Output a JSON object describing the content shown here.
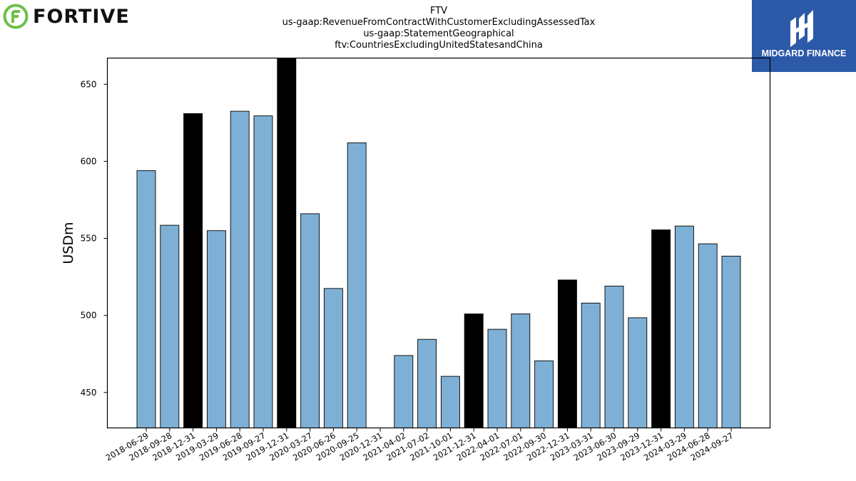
{
  "logos": {
    "left_wordmark": "FORTIVE",
    "right_brand": "MIDGARD FINANCE",
    "left_icon": "fortive-leaf-icon",
    "right_icon": "midgard-m-icon"
  },
  "chart_data": {
    "type": "bar",
    "title": [
      "FTV",
      "us-gaap:RevenueFromContractWithCustomerExcludingAssessedTax",
      "us-gaap:StatementGeographical",
      "ftv:CountriesExcludingUnitedStatesandChina"
    ],
    "ylabel": "USDm",
    "xlabel": "",
    "ylim": [
      427,
      667
    ],
    "yticks": [
      450,
      500,
      550,
      600,
      650
    ],
    "grid": false,
    "categories": [
      "2018-06-29",
      "2018-09-28",
      "2018-12-31",
      "2019-03-29",
      "2019-06-28",
      "2019-09-27",
      "2019-12-31",
      "2020-03-27",
      "2020-06-26",
      "2020-09-25",
      "2020-12-31",
      "2021-04-02",
      "2021-07-02",
      "2021-10-01",
      "2021-12-31",
      "2022-04-01",
      "2022-07-01",
      "2022-09-30",
      "2022-12-31",
      "2023-03-31",
      "2023-06-30",
      "2023-09-29",
      "2023-12-31",
      "2024-03-29",
      "2024-06-28",
      "2024-09-27"
    ],
    "values": [
      594,
      558.5,
      631,
      555,
      632.5,
      629.5,
      667,
      566,
      517.5,
      612,
      null,
      474,
      484.5,
      460.5,
      501,
      491,
      501,
      470.5,
      523,
      508,
      519,
      498.5,
      555.5,
      558,
      546.5,
      538.5
    ],
    "highlight": [
      false,
      false,
      true,
      false,
      false,
      false,
      true,
      false,
      false,
      false,
      false,
      false,
      false,
      false,
      true,
      false,
      false,
      false,
      true,
      false,
      false,
      false,
      true,
      false,
      false,
      false
    ],
    "colors": {
      "regular": "#7eb0d5",
      "highlight": "#000000",
      "edge": "#000000"
    }
  }
}
